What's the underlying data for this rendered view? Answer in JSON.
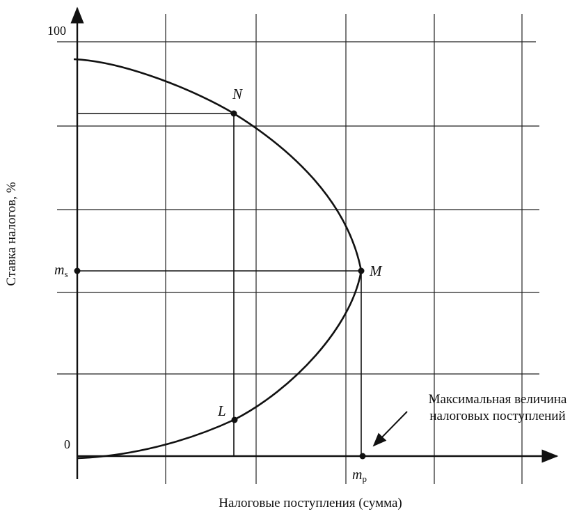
{
  "chart_data": {
    "type": "line",
    "title": "",
    "xlabel": "Налоговые поступления (сумма)",
    "ylabel": "Ставка налогов, %",
    "y_tick_labels": {
      "top": "100",
      "origin": "0"
    },
    "y_marker_label": "m",
    "y_marker_sub": "s",
    "x_marker_label": "m",
    "x_marker_sub": "p",
    "ylim": [
      0,
      100
    ],
    "grid": true,
    "series": [
      {
        "points": [
          [
            0,
            0
          ],
          [
            0.3,
            2
          ],
          [
            0.55,
            9
          ],
          [
            0.8,
            25
          ],
          [
            1.0,
            45
          ],
          [
            0.93,
            68
          ],
          [
            0.75,
            83
          ],
          [
            0.55,
            92
          ],
          [
            0.2,
            97
          ]
        ]
      }
    ],
    "points": {
      "N": {
        "label": "N",
        "x": 0.55,
        "y": 83
      },
      "M": {
        "label": "M",
        "x": 1.0,
        "y": 45
      },
      "L": {
        "label": "L",
        "x": 0.55,
        "y": 9
      }
    },
    "annotation": {
      "line1": "Максимальная величина",
      "line2": "налоговых поступлений"
    }
  }
}
